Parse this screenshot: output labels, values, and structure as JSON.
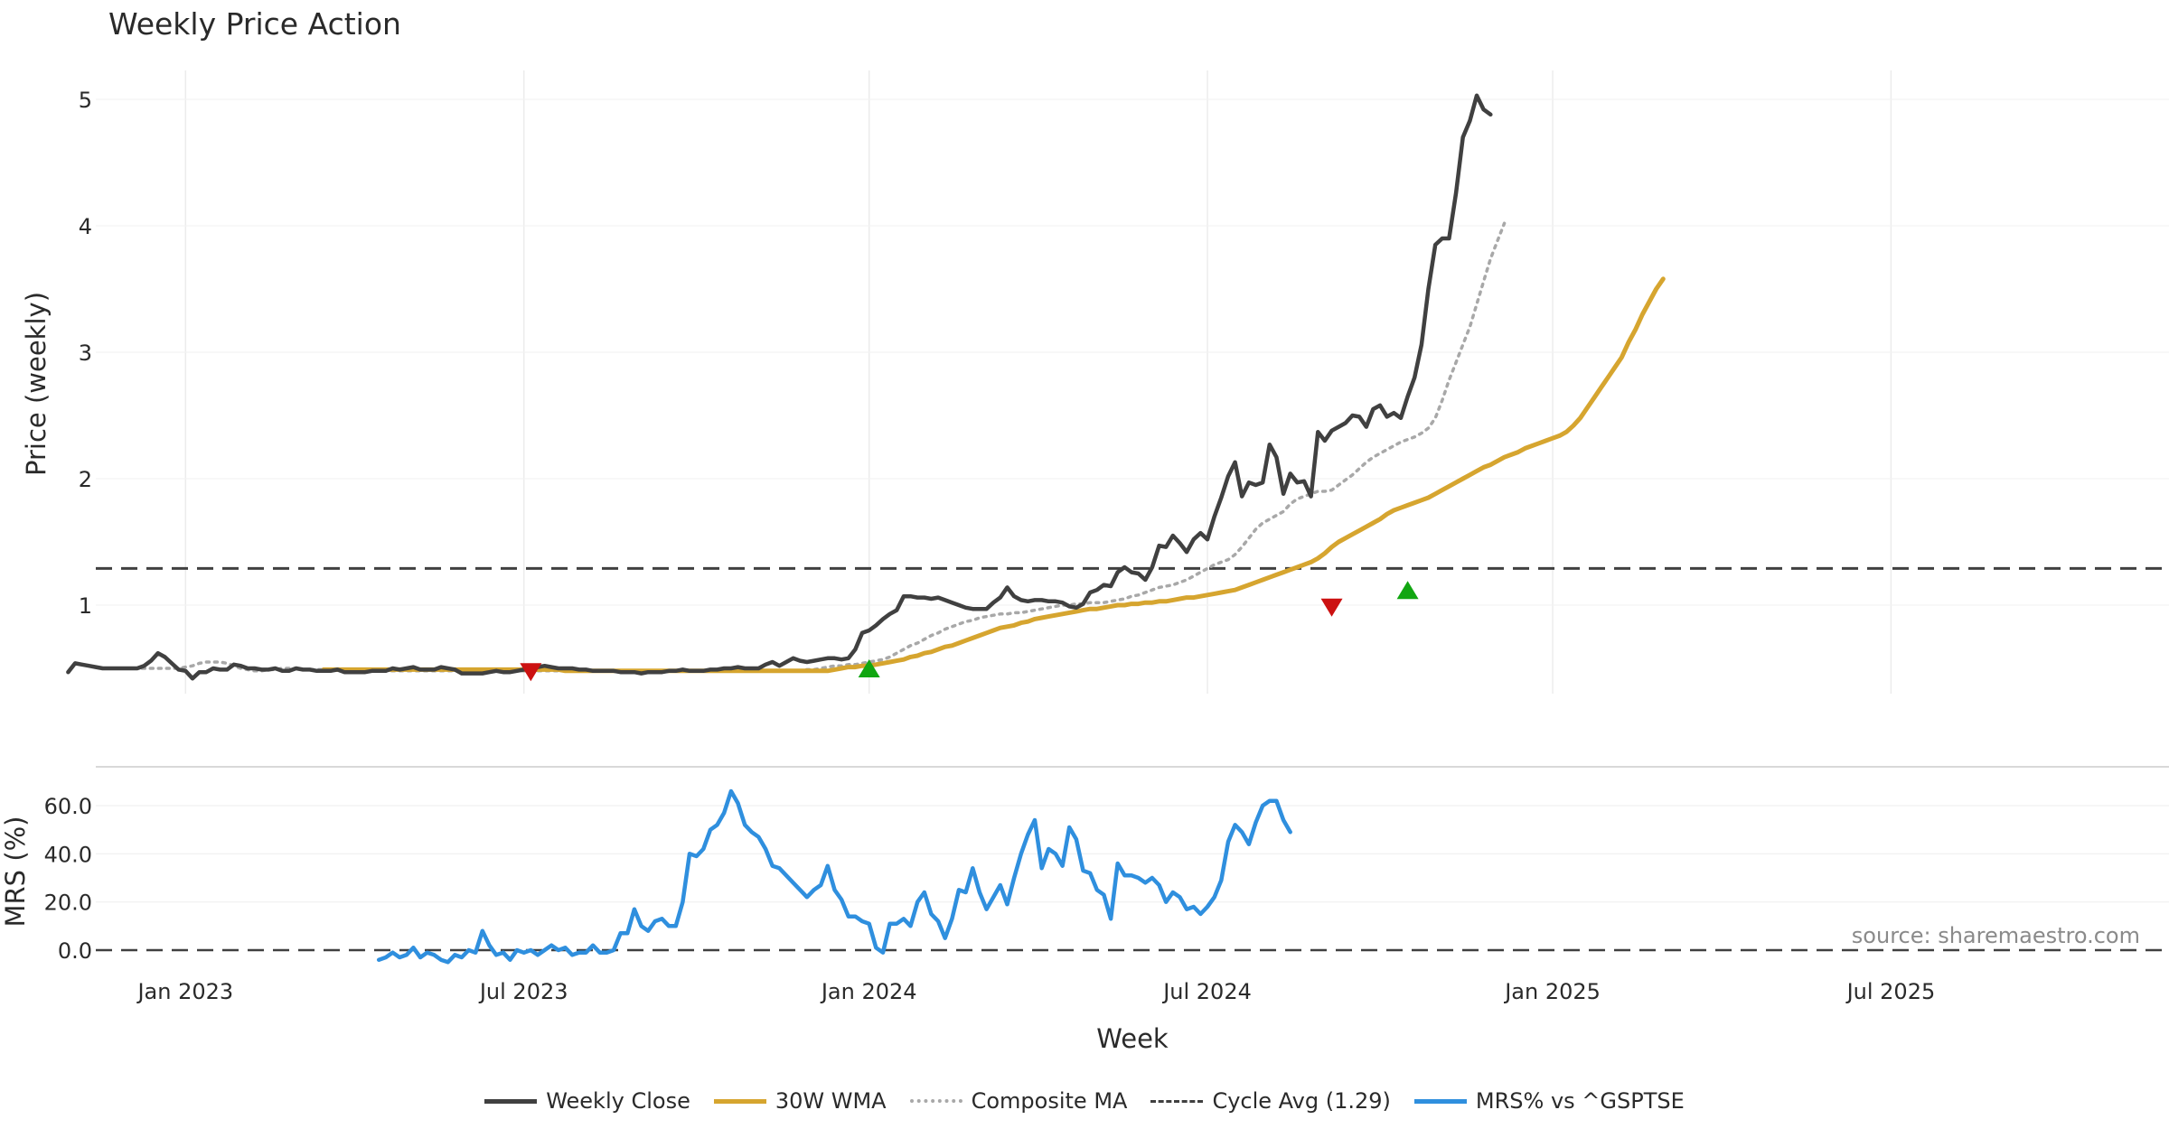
{
  "chart_data": {
    "type": "line",
    "title": "Weekly Price Action",
    "xlabel": "Week",
    "x_ticks": [
      "Jan 2023",
      "Jul 2023",
      "Jan 2024",
      "Jul 2024",
      "Jan 2025",
      "Jul 2025"
    ],
    "x_tick_weeks": [
      10,
      59,
      109,
      158,
      208,
      257
    ],
    "price_panel": {
      "ylabel": "Price (weekly)",
      "ylim": [
        0.3,
        5.3
      ],
      "y_ticks": [
        "1",
        "2",
        "3",
        "4",
        "5"
      ],
      "y_tick_values": [
        1,
        2,
        3,
        4,
        5
      ],
      "series": [
        {
          "name": "Weekly Close",
          "color": "#404040",
          "style": "solid",
          "start_week": -7,
          "values": [
            0.47,
            0.54,
            0.53,
            0.52,
            0.51,
            0.5,
            0.5,
            0.5,
            0.5,
            0.5,
            0.5,
            0.52,
            0.56,
            0.62,
            0.59,
            0.54,
            0.49,
            0.48,
            0.42,
            0.47,
            0.47,
            0.5,
            0.49,
            0.49,
            0.53,
            0.52,
            0.5,
            0.5,
            0.49,
            0.49,
            0.5,
            0.48,
            0.48,
            0.5,
            0.49,
            0.49,
            0.48,
            0.48,
            0.48,
            0.49,
            0.47,
            0.47,
            0.47,
            0.47,
            0.48,
            0.48,
            0.48,
            0.5,
            0.49,
            0.5,
            0.51,
            0.49,
            0.49,
            0.49,
            0.51,
            0.5,
            0.49,
            0.46,
            0.46,
            0.46,
            0.46,
            0.47,
            0.48,
            0.47,
            0.47,
            0.48,
            0.49,
            0.5,
            0.51,
            0.52,
            0.51,
            0.5,
            0.5,
            0.5,
            0.49,
            0.49,
            0.48,
            0.48,
            0.48,
            0.48,
            0.47,
            0.47,
            0.47,
            0.46,
            0.47,
            0.47,
            0.47,
            0.48,
            0.48,
            0.49,
            0.48,
            0.48,
            0.48,
            0.49,
            0.49,
            0.5,
            0.5,
            0.51,
            0.5,
            0.5,
            0.5,
            0.53,
            0.55,
            0.52,
            0.55,
            0.58,
            0.56,
            0.55,
            0.56,
            0.57,
            0.58,
            0.58,
            0.57,
            0.58,
            0.65,
            0.78,
            0.8,
            0.84,
            0.89,
            0.93,
            0.96,
            1.07,
            1.07,
            1.06,
            1.06,
            1.05,
            1.06,
            1.04,
            1.02,
            1.0,
            0.98,
            0.97,
            0.97,
            0.97,
            1.02,
            1.06,
            1.14,
            1.07,
            1.04,
            1.03,
            1.04,
            1.04,
            1.03,
            1.03,
            1.02,
            0.99,
            0.98,
            1.01,
            1.1,
            1.12,
            1.16,
            1.15,
            1.26,
            1.3,
            1.26,
            1.25,
            1.2,
            1.3,
            1.47,
            1.46,
            1.55,
            1.49,
            1.42,
            1.52,
            1.57,
            1.52,
            1.7,
            1.85,
            2.02,
            2.13,
            1.86,
            1.97,
            1.95,
            1.97,
            2.27,
            2.17,
            1.88,
            2.04,
            1.97,
            1.98,
            1.86,
            2.37,
            2.3,
            2.38,
            2.41,
            2.44,
            2.5,
            2.49,
            2.41,
            2.55,
            2.58,
            2.49,
            2.52,
            2.48,
            2.65,
            2.8,
            3.06,
            3.5,
            3.85,
            3.9,
            3.9,
            4.26,
            4.7,
            4.83,
            5.03,
            4.92,
            4.88
          ]
        },
        {
          "name": "30W WMA",
          "color": "#d6a52f",
          "style": "solid",
          "start_week": 30,
          "values": [
            0.49,
            0.49,
            0.49,
            0.49,
            0.49,
            0.49,
            0.49,
            0.49,
            0.49,
            0.49,
            0.49,
            0.49,
            0.49,
            0.49,
            0.49,
            0.49,
            0.49,
            0.49,
            0.49,
            0.49,
            0.49,
            0.49,
            0.49,
            0.49,
            0.49,
            0.49,
            0.49,
            0.49,
            0.49,
            0.49,
            0.49,
            0.49,
            0.49,
            0.49,
            0.49,
            0.48,
            0.48,
            0.48,
            0.48,
            0.48,
            0.48,
            0.48,
            0.48,
            0.48,
            0.48,
            0.48,
            0.48,
            0.48,
            0.48,
            0.48,
            0.48,
            0.48,
            0.48,
            0.48,
            0.48,
            0.48,
            0.48,
            0.48,
            0.48,
            0.48,
            0.48,
            0.48,
            0.48,
            0.48,
            0.48,
            0.48,
            0.48,
            0.48,
            0.48,
            0.48,
            0.48,
            0.48,
            0.48,
            0.48,
            0.49,
            0.5,
            0.51,
            0.51,
            0.52,
            0.52,
            0.53,
            0.54,
            0.55,
            0.56,
            0.57,
            0.59,
            0.6,
            0.62,
            0.63,
            0.65,
            0.67,
            0.68,
            0.7,
            0.72,
            0.74,
            0.76,
            0.78,
            0.8,
            0.82,
            0.83,
            0.84,
            0.86,
            0.87,
            0.89,
            0.9,
            0.91,
            0.92,
            0.93,
            0.94,
            0.95,
            0.96,
            0.97,
            0.97,
            0.98,
            0.99,
            1.0,
            1.0,
            1.01,
            1.01,
            1.02,
            1.02,
            1.03,
            1.03,
            1.04,
            1.05,
            1.06,
            1.06,
            1.07,
            1.08,
            1.09,
            1.1,
            1.11,
            1.12,
            1.14,
            1.16,
            1.18,
            1.2,
            1.22,
            1.24,
            1.26,
            1.28,
            1.3,
            1.32,
            1.34,
            1.37,
            1.41,
            1.46,
            1.5,
            1.53,
            1.56,
            1.59,
            1.62,
            1.65,
            1.68,
            1.72,
            1.75,
            1.77,
            1.79,
            1.81,
            1.83,
            1.85,
            1.88,
            1.91,
            1.94,
            1.97,
            2.0,
            2.03,
            2.06,
            2.09,
            2.11,
            2.14,
            2.17,
            2.19,
            2.21,
            2.24,
            2.26,
            2.28,
            2.3,
            2.32,
            2.34,
            2.37,
            2.42,
            2.48,
            2.56,
            2.64,
            2.72,
            2.8,
            2.88,
            2.96,
            3.08,
            3.18,
            3.3,
            3.4,
            3.5,
            3.58
          ]
        },
        {
          "name": "Composite MA",
          "color": "#a8a8a8",
          "style": "dotted",
          "start_week": -1,
          "values": [
            0.5,
            0.5,
            0.5,
            0.5,
            0.5,
            0.5,
            0.5,
            0.5,
            0.5,
            0.5,
            0.5,
            0.51,
            0.52,
            0.54,
            0.55,
            0.55,
            0.55,
            0.54,
            0.52,
            0.5,
            0.49,
            0.48,
            0.48,
            0.49,
            0.49,
            0.5,
            0.5,
            0.5,
            0.49,
            0.49,
            0.49,
            0.49,
            0.49,
            0.49,
            0.49,
            0.49,
            0.48,
            0.48,
            0.48,
            0.48,
            0.48,
            0.48,
            0.48,
            0.48,
            0.48,
            0.48,
            0.48,
            0.48,
            0.48,
            0.48,
            0.48,
            0.48,
            0.48,
            0.48,
            0.48,
            0.48,
            0.48,
            0.48,
            0.48,
            0.48,
            0.48,
            0.48,
            0.48,
            0.48,
            0.48,
            0.48,
            0.48,
            0.48,
            0.48,
            0.48,
            0.48,
            0.48,
            0.48,
            0.48,
            0.48,
            0.48,
            0.48,
            0.48,
            0.48,
            0.48,
            0.48,
            0.48,
            0.48,
            0.48,
            0.48,
            0.48,
            0.48,
            0.48,
            0.48,
            0.48,
            0.48,
            0.48,
            0.48,
            0.48,
            0.48,
            0.48,
            0.48,
            0.48,
            0.48,
            0.48,
            0.48,
            0.49,
            0.49,
            0.5,
            0.51,
            0.52,
            0.52,
            0.53,
            0.53,
            0.54,
            0.55,
            0.56,
            0.57,
            0.59,
            0.62,
            0.65,
            0.68,
            0.7,
            0.73,
            0.76,
            0.78,
            0.81,
            0.83,
            0.85,
            0.87,
            0.88,
            0.9,
            0.91,
            0.92,
            0.93,
            0.93,
            0.94,
            0.94,
            0.95,
            0.96,
            0.97,
            0.98,
            0.99,
            1.0,
            1.0,
            1.01,
            1.01,
            1.02,
            1.02,
            1.02,
            1.03,
            1.04,
            1.05,
            1.07,
            1.08,
            1.1,
            1.12,
            1.14,
            1.15,
            1.16,
            1.18,
            1.2,
            1.23,
            1.26,
            1.29,
            1.32,
            1.34,
            1.36,
            1.4,
            1.46,
            1.53,
            1.6,
            1.65,
            1.68,
            1.71,
            1.74,
            1.8,
            1.84,
            1.86,
            1.88,
            1.9,
            1.9,
            1.91,
            1.95,
            1.99,
            2.03,
            2.08,
            2.13,
            2.17,
            2.2,
            2.23,
            2.26,
            2.29,
            2.31,
            2.33,
            2.36,
            2.4,
            2.48,
            2.62,
            2.78,
            2.92,
            3.06,
            3.2,
            3.38,
            3.56,
            3.74,
            3.88,
            4.02
          ]
        }
      ],
      "cycle_avg": {
        "name": "Cycle Avg (1.29)",
        "value": 1.29,
        "color": "#404040",
        "style": "dashed"
      },
      "signals": [
        {
          "type": "sell",
          "week": 60,
          "value": 0.47,
          "color": "#cc1111"
        },
        {
          "type": "buy",
          "week": 109,
          "value": 0.5,
          "color": "#11a611"
        },
        {
          "type": "sell",
          "week": 176,
          "value": 0.98,
          "color": "#cc1111"
        },
        {
          "type": "buy",
          "week": 187,
          "value": 1.12,
          "color": "#11a611"
        }
      ]
    },
    "mrs_panel": {
      "ylabel": "MRS (%)",
      "ylim": [
        -3,
        72
      ],
      "y_ticks": [
        "0.0",
        "20.0",
        "40.0",
        "60.0"
      ],
      "y_tick_values": [
        0,
        20,
        40,
        60
      ],
      "series": [
        {
          "name": "MRS% vs ^GSPTSE",
          "color": "#2f8fde",
          "style": "solid",
          "start_week": 38,
          "values": [
            -4,
            -3,
            -1,
            -3,
            -2,
            1,
            -3,
            -1,
            -2,
            -4,
            -5,
            -2,
            -3,
            0,
            -1,
            8,
            2,
            -2,
            -1,
            -4,
            0,
            -1,
            0,
            -2,
            0,
            2,
            0,
            1,
            -2,
            -1,
            -1,
            2,
            -1,
            -1,
            0,
            7,
            7,
            17,
            10,
            8,
            12,
            13,
            10,
            10,
            20,
            40,
            39,
            42,
            50,
            52,
            57,
            66,
            61,
            52,
            49,
            47,
            42,
            35,
            34,
            31,
            28,
            25,
            22,
            25,
            27,
            35,
            25,
            21,
            14,
            14,
            12,
            11,
            1,
            -1,
            11,
            11,
            13,
            10,
            20,
            24,
            15,
            12,
            5,
            13,
            25,
            24,
            34,
            24,
            17,
            22,
            27,
            19,
            30,
            40,
            48,
            54,
            34,
            42,
            40,
            35,
            51,
            46,
            33,
            32,
            25,
            23,
            13,
            36,
            31,
            31,
            30,
            28,
            30,
            27,
            20,
            24,
            22,
            17,
            18,
            15,
            18,
            22,
            29,
            45,
            52,
            49,
            44,
            53,
            60,
            62,
            62,
            54,
            49
          ]
        }
      ],
      "zero_line": {
        "value": 0,
        "color": "#404040",
        "style": "dashed"
      }
    },
    "legend": {
      "position": "bottom-center",
      "items": [
        {
          "label": "Weekly Close",
          "color": "#404040",
          "style": "solid"
        },
        {
          "label": "30W WMA",
          "color": "#d6a52f",
          "style": "solid"
        },
        {
          "label": "Composite MA",
          "color": "#a8a8a8",
          "style": "dotted"
        },
        {
          "label": "Cycle Avg (1.29)",
          "color": "#404040",
          "style": "dashed"
        },
        {
          "label": "MRS% vs ^GSPTSE",
          "color": "#2f8fde",
          "style": "solid"
        }
      ]
    },
    "annotation": "source: sharemaestro.com"
  }
}
